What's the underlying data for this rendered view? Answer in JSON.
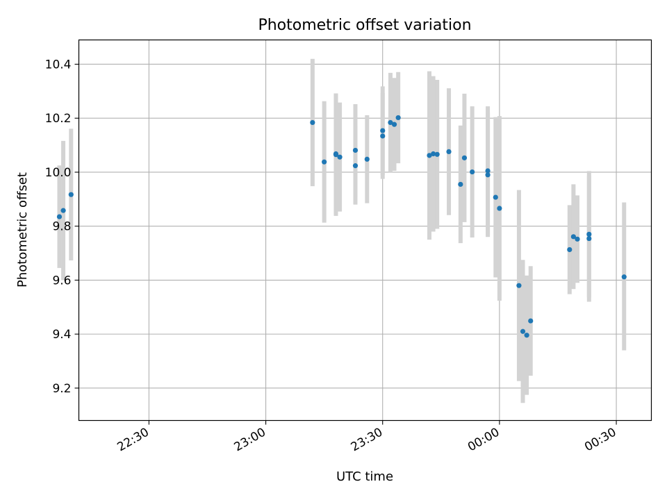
{
  "chart_data": {
    "type": "scatter",
    "title": "Photometric offset variation",
    "xlabel": "UTC time",
    "ylabel": "Photometric offset",
    "x_unit": "UTC clock time (hours after midnight; values above 24 are after midnight of the next day)",
    "xlim": [
      "22:12",
      "00:39"
    ],
    "ylim": [
      9.08,
      10.49
    ],
    "x_ticks": [
      {
        "value": "22:30",
        "label": "22:30"
      },
      {
        "value": "23:00",
        "label": "23:00"
      },
      {
        "value": "23:30",
        "label": "23:30"
      },
      {
        "value": "00:00",
        "label": "00:00"
      },
      {
        "value": "00:30",
        "label": "00:30"
      }
    ],
    "y_ticks": [
      {
        "value": 9.2,
        "label": "9.2"
      },
      {
        "value": 9.4,
        "label": "9.4"
      },
      {
        "value": 9.6,
        "label": "9.6"
      },
      {
        "value": 9.8,
        "label": "9.8"
      },
      {
        "value": 10.0,
        "label": "10.0"
      },
      {
        "value": 10.2,
        "label": "10.2"
      },
      {
        "value": 10.4,
        "label": "10.4"
      }
    ],
    "grid": true,
    "point_color": "#1f77b4",
    "errorbar_color": "#d3d3d3",
    "points": [
      {
        "x": "22:07",
        "y": 9.835,
        "lo": 9.645,
        "hi": 10.025
      },
      {
        "x": "22:08",
        "y": 9.858,
        "lo": 9.6,
        "hi": 10.116
      },
      {
        "x": "22:10",
        "y": 9.917,
        "lo": 9.673,
        "hi": 10.161
      },
      {
        "x": "23:12",
        "y": 10.184,
        "lo": 9.948,
        "hi": 10.42
      },
      {
        "x": "23:15",
        "y": 10.038,
        "lo": 9.813,
        "hi": 10.263
      },
      {
        "x": "23:18",
        "y": 10.065,
        "lo": 9.838,
        "hi": 10.292
      },
      {
        "x": "23:18",
        "y": 10.068,
        "lo": 9.845,
        "hi": 10.291
      },
      {
        "x": "23:19",
        "y": 10.056,
        "lo": 9.854,
        "hi": 10.258
      },
      {
        "x": "23:23",
        "y": 10.024,
        "lo": 9.88,
        "hi": 10.168
      },
      {
        "x": "23:23",
        "y": 10.081,
        "lo": 9.91,
        "hi": 10.252
      },
      {
        "x": "23:26",
        "y": 10.048,
        "lo": 9.885,
        "hi": 10.211
      },
      {
        "x": "23:30",
        "y": 10.154,
        "lo": 9.99,
        "hi": 10.318
      },
      {
        "x": "23:30",
        "y": 10.134,
        "lo": 9.975,
        "hi": 10.293
      },
      {
        "x": "23:32",
        "y": 10.184,
        "lo": 10.0,
        "hi": 10.368
      },
      {
        "x": "23:33",
        "y": 10.177,
        "lo": 10.005,
        "hi": 10.349
      },
      {
        "x": "23:34",
        "y": 10.202,
        "lo": 10.033,
        "hi": 10.371
      },
      {
        "x": "23:42",
        "y": 10.062,
        "lo": 9.75,
        "hi": 10.374
      },
      {
        "x": "23:43",
        "y": 10.068,
        "lo": 9.78,
        "hi": 10.356
      },
      {
        "x": "23:44",
        "y": 10.066,
        "lo": 9.79,
        "hi": 10.342
      },
      {
        "x": "23:47",
        "y": 10.076,
        "lo": 9.841,
        "hi": 10.311
      },
      {
        "x": "23:50",
        "y": 9.955,
        "lo": 9.737,
        "hi": 10.173
      },
      {
        "x": "23:51",
        "y": 10.053,
        "lo": 9.815,
        "hi": 10.291
      },
      {
        "x": "23:53",
        "y": 10.001,
        "lo": 9.758,
        "hi": 10.244
      },
      {
        "x": "23:57",
        "y": 9.99,
        "lo": 9.76,
        "hi": 10.22
      },
      {
        "x": "23:57",
        "y": 10.005,
        "lo": 9.766,
        "hi": 10.244
      },
      {
        "x": "23:59",
        "y": 9.907,
        "lo": 9.61,
        "hi": 10.204
      },
      {
        "x": "00:00",
        "y": 9.866,
        "lo": 9.524,
        "hi": 10.208
      },
      {
        "x": "00:05",
        "y": 9.58,
        "lo": 9.226,
        "hi": 9.934
      },
      {
        "x": "00:06",
        "y": 9.41,
        "lo": 9.145,
        "hi": 9.675
      },
      {
        "x": "00:07",
        "y": 9.396,
        "lo": 9.175,
        "hi": 9.617
      },
      {
        "x": "00:08",
        "y": 9.449,
        "lo": 9.246,
        "hi": 9.652
      },
      {
        "x": "00:18",
        "y": 9.713,
        "lo": 9.548,
        "hi": 9.878
      },
      {
        "x": "00:19",
        "y": 9.761,
        "lo": 9.567,
        "hi": 9.955
      },
      {
        "x": "00:20",
        "y": 9.752,
        "lo": 9.59,
        "hi": 9.914
      },
      {
        "x": "00:23",
        "y": 9.77,
        "lo": 9.536,
        "hi": 10.004
      },
      {
        "x": "00:23",
        "y": 9.754,
        "lo": 9.52,
        "hi": 9.988
      },
      {
        "x": "00:32",
        "y": 9.612,
        "lo": 9.34,
        "hi": 9.888
      }
    ]
  }
}
